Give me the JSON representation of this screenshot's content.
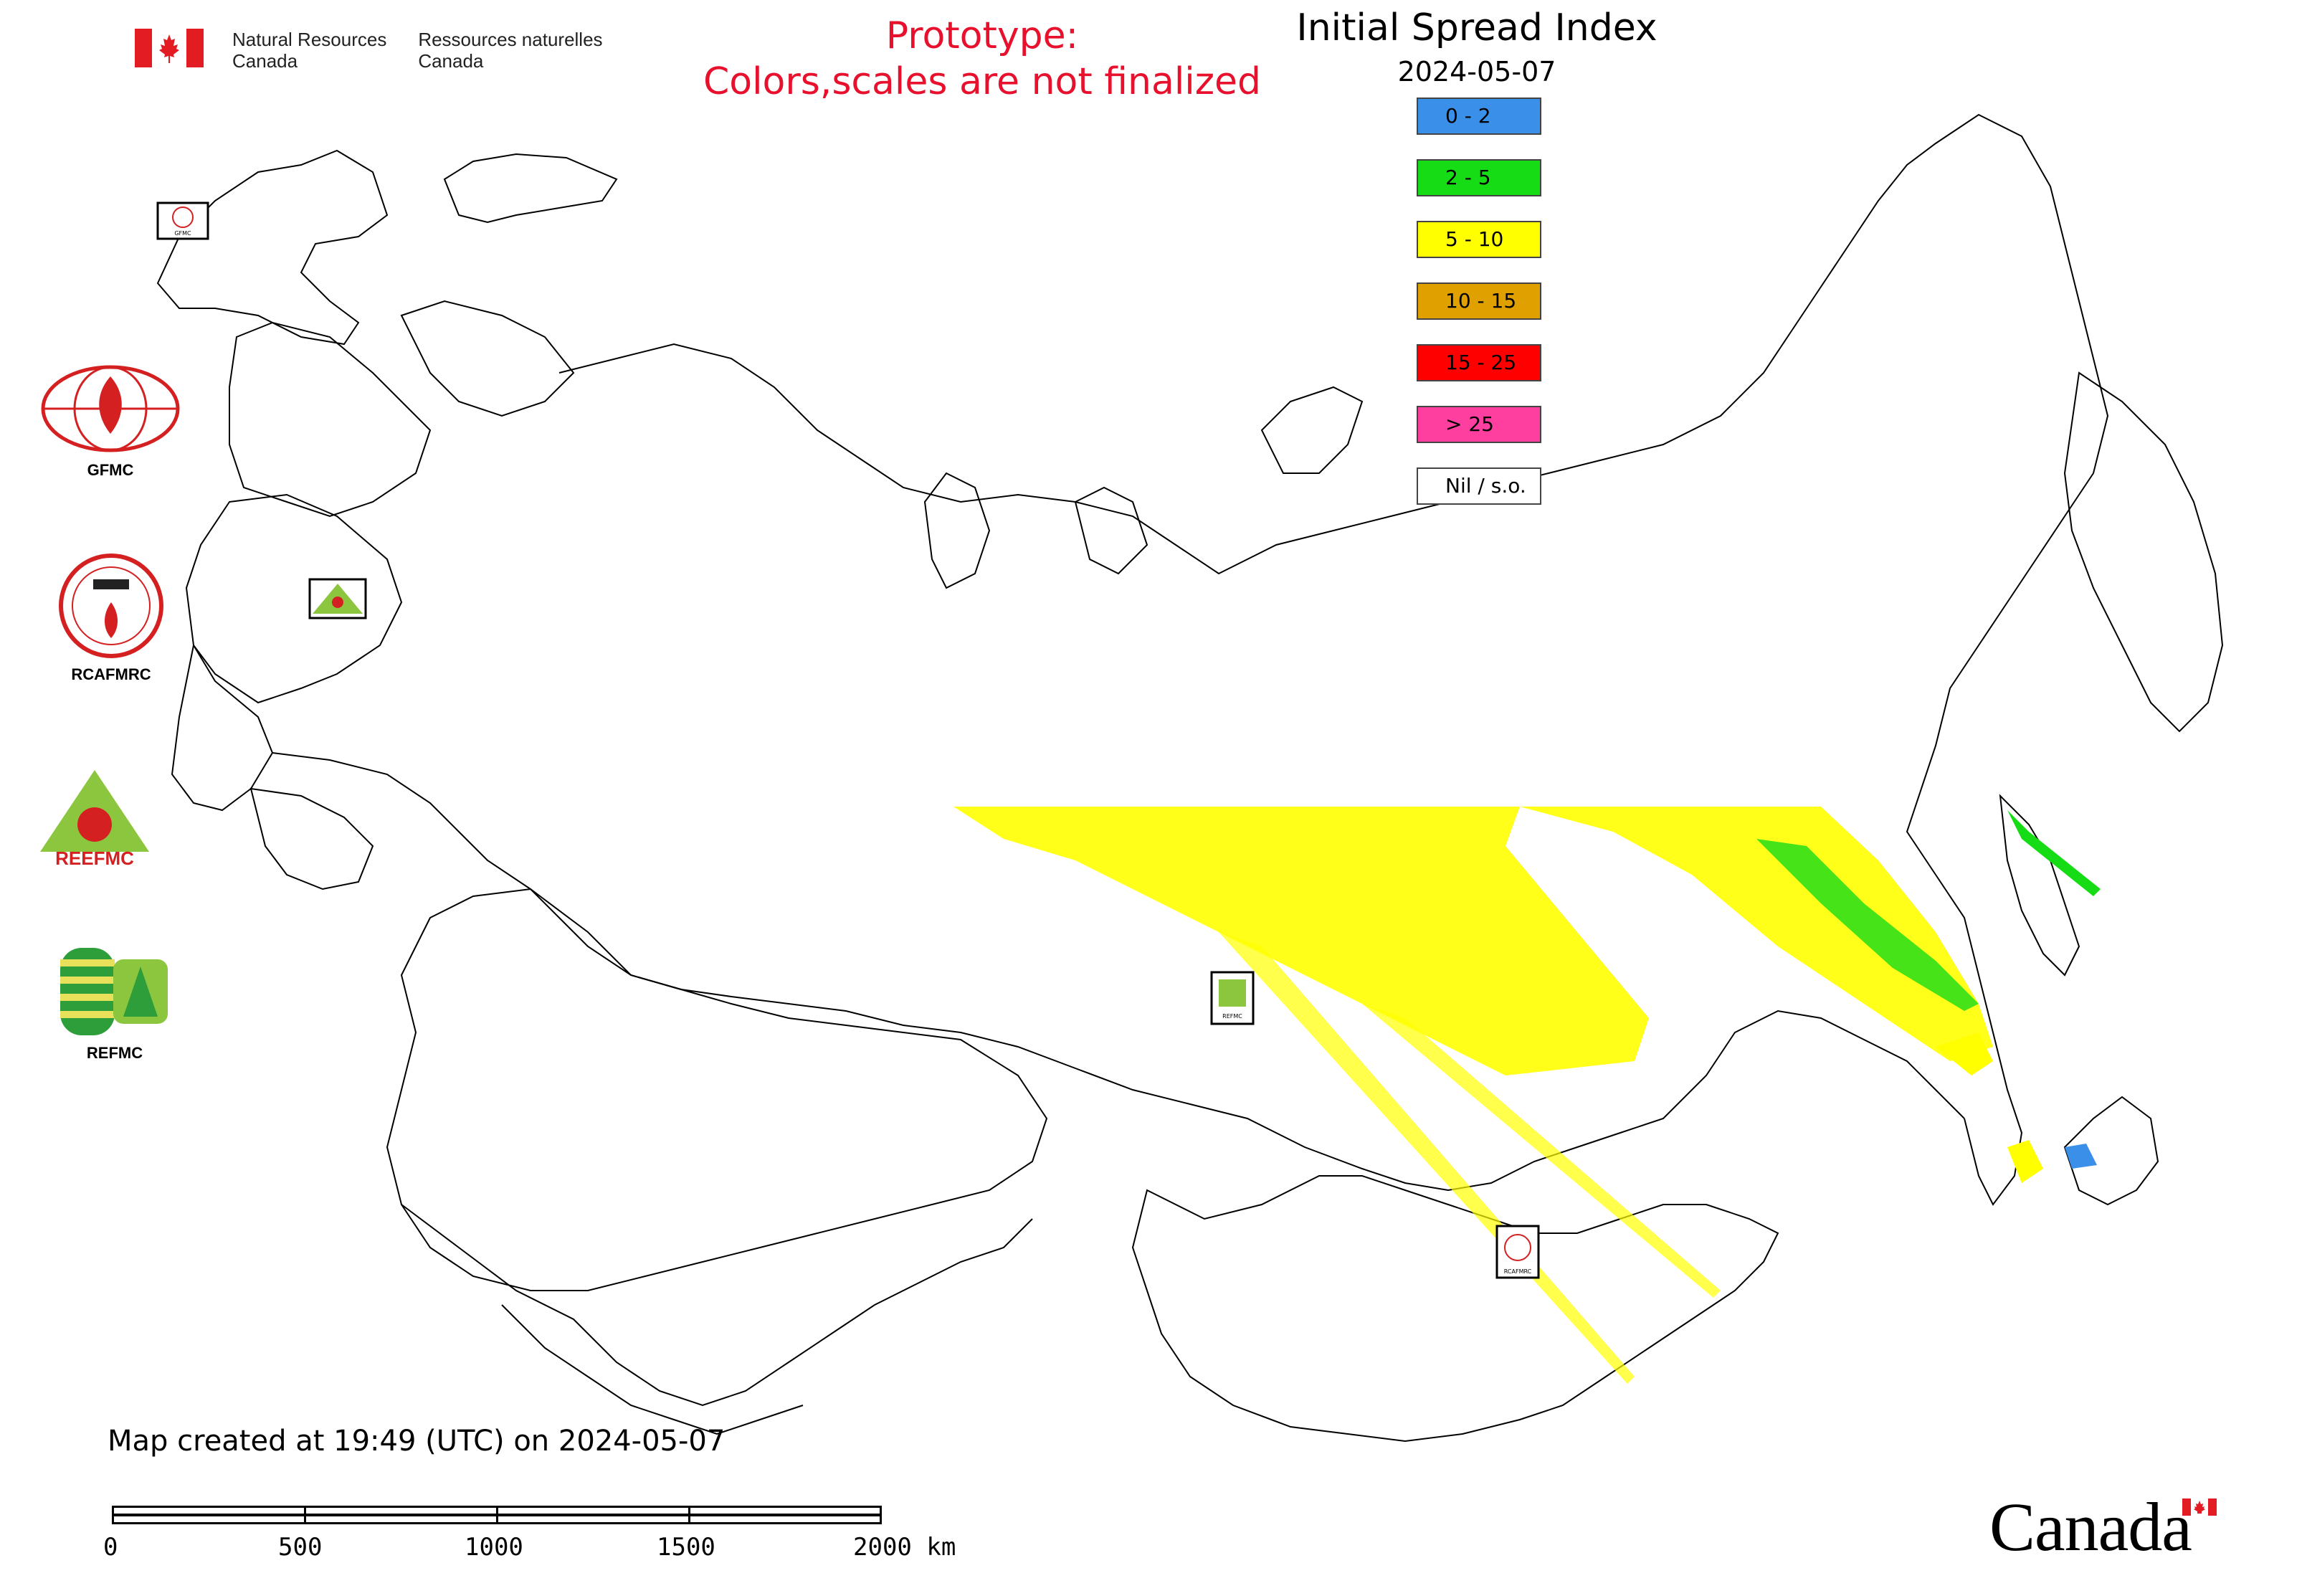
{
  "header": {
    "gov_en_line1": "Natural Resources",
    "gov_en_line2": "Canada",
    "gov_fr_line1": "Ressources naturelles",
    "gov_fr_line2": "Canada"
  },
  "notice": {
    "line1": "Prototype:",
    "line2": "Colors,scales are not finalized"
  },
  "title": "Initial Spread Index",
  "date": "2024-05-07",
  "legend": [
    {
      "label": "0 - 2",
      "color": "#3a8fe8"
    },
    {
      "label": "2 - 5",
      "color": "#16dc16"
    },
    {
      "label": "5 - 10",
      "color": "#ffff00"
    },
    {
      "label": "10 - 15",
      "color": "#e0a000"
    },
    {
      "label": "15 - 25",
      "color": "#ff0000"
    },
    {
      "label": "> 25",
      "color": "#ff3fa0"
    },
    {
      "label": "Nil / s.o.",
      "color": "#ffffff"
    }
  ],
  "centres": [
    {
      "name": "GFMC",
      "icon": "gfmc-logo"
    },
    {
      "name": "RCAFMRC",
      "icon": "rcafmrc-logo"
    },
    {
      "name": "REEFMC",
      "icon": "reefmc-logo"
    },
    {
      "name": "REFMC",
      "icon": "refmc-logo"
    }
  ],
  "map_markers": [
    {
      "name": "GFMC",
      "icon": "gfmc-marker"
    },
    {
      "name": "REEFMC",
      "icon": "reefmc-marker"
    },
    {
      "name": "REFMC",
      "icon": "refmc-marker"
    },
    {
      "name": "RCAFMRC",
      "icon": "rcafmrc-marker"
    }
  ],
  "footer": {
    "created": "Map created at 19:49 (UTC) on 2024-05-07"
  },
  "scale": {
    "ticks": [
      "0",
      "500",
      "1000",
      "1500",
      "2000 km"
    ]
  },
  "wordmark": "Canada"
}
